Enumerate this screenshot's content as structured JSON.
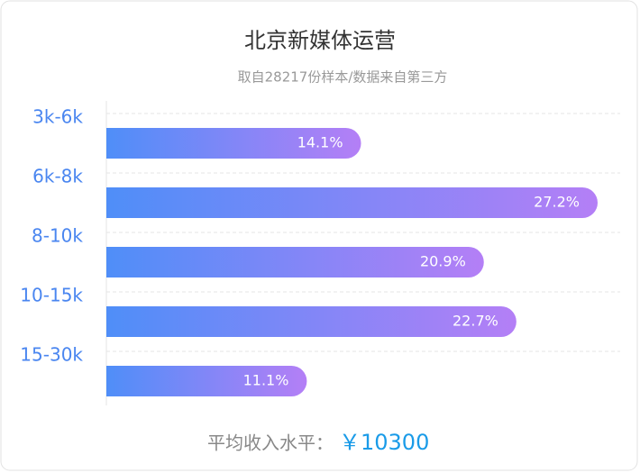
{
  "chart_data": {
    "type": "bar",
    "orientation": "horizontal",
    "title": "北京新媒体运营",
    "subtitle": "取自28217份样本/数据来自第三方",
    "categories": [
      "3k-6k",
      "6k-8k",
      "8-10k",
      "10-15k",
      "15-30k"
    ],
    "values": [
      14.1,
      27.2,
      20.9,
      22.7,
      11.1
    ],
    "value_labels": [
      "14.1%",
      "27.2%",
      "20.9%",
      "22.7%",
      "11.1%"
    ],
    "gradient": [
      "#4f8ef8",
      "#b47ff6"
    ],
    "grid": true
  },
  "footer": {
    "label": "平均收入水平：",
    "value": "￥10300"
  }
}
